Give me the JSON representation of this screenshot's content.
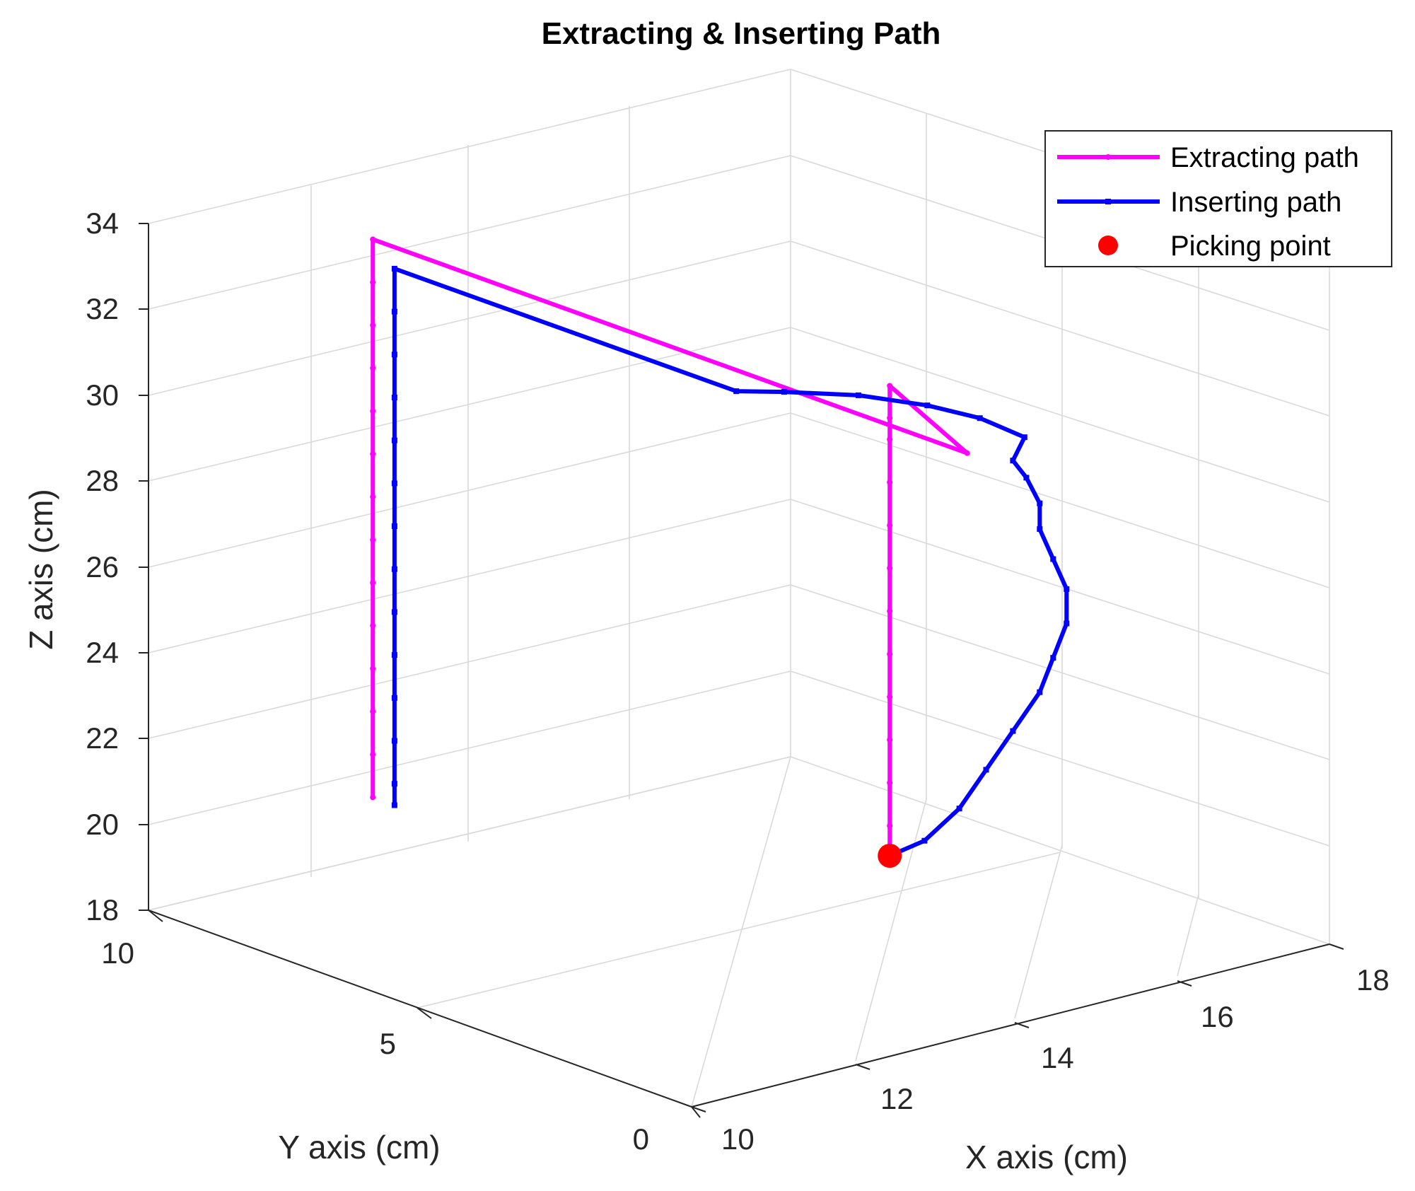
{
  "chart_data": {
    "type": "line3d",
    "title": "Extracting & Inserting Path",
    "xlabel": "X axis (cm)",
    "ylabel": "Y axis (cm)",
    "zlabel": "Z axis (cm)",
    "xlim": [
      10,
      18
    ],
    "ylim": [
      0,
      10
    ],
    "zlim": [
      18,
      34
    ],
    "xticks": [
      "10",
      "12",
      "14",
      "16",
      "18"
    ],
    "yticks": [
      "0",
      "5",
      "10"
    ],
    "zticks": [
      "18",
      "20",
      "22",
      "24",
      "26",
      "28",
      "30",
      "32",
      "34"
    ],
    "grid": true,
    "legend_position": "top-right",
    "series": [
      {
        "name": "Extracting path",
        "color": "#ff00ff",
        "marker": "dot",
        "points": [
          [
            16.3,
            5.6,
            18.3
          ],
          [
            16.3,
            5.6,
            19.0
          ],
          [
            16.3,
            5.6,
            20.0
          ],
          [
            16.3,
            5.6,
            21.0
          ],
          [
            16.3,
            5.6,
            22.0
          ],
          [
            16.3,
            5.6,
            23.0
          ],
          [
            16.3,
            5.6,
            24.0
          ],
          [
            16.3,
            5.6,
            25.0
          ],
          [
            16.3,
            5.6,
            26.0
          ],
          [
            16.3,
            5.6,
            27.0
          ],
          [
            16.3,
            5.6,
            28.0
          ],
          [
            16.3,
            5.6,
            28.5
          ],
          [
            16.3,
            5.6,
            29.25
          ],
          [
            15.5,
            3.0,
            29.25
          ],
          [
            12.2,
            9.1,
            33.0
          ],
          [
            12.2,
            9.1,
            32.0
          ],
          [
            12.2,
            9.1,
            31.0
          ],
          [
            12.2,
            9.1,
            30.0
          ],
          [
            12.2,
            9.1,
            29.0
          ],
          [
            12.2,
            9.1,
            28.0
          ],
          [
            12.2,
            9.1,
            27.0
          ],
          [
            12.2,
            9.1,
            26.0
          ],
          [
            12.2,
            9.1,
            25.0
          ],
          [
            12.2,
            9.1,
            24.0
          ],
          [
            12.2,
            9.1,
            23.0
          ],
          [
            12.2,
            9.1,
            22.0
          ],
          [
            12.2,
            9.1,
            21.0
          ],
          [
            12.2,
            9.1,
            20.0
          ]
        ]
      },
      {
        "name": "Inserting path",
        "color": "#0000ff",
        "marker": "square",
        "points": [
          [
            16.3,
            5.6,
            18.3
          ],
          [
            16.6,
            5.4,
            18.6
          ],
          [
            16.9,
            5.2,
            19.3
          ],
          [
            17.1,
            5.0,
            20.2
          ],
          [
            17.3,
            4.8,
            21.1
          ],
          [
            17.5,
            4.6,
            22.0
          ],
          [
            17.6,
            4.5,
            22.8
          ],
          [
            17.7,
            4.4,
            23.6
          ],
          [
            17.7,
            4.4,
            24.4
          ],
          [
            17.6,
            4.5,
            25.1
          ],
          [
            17.5,
            4.6,
            25.8
          ],
          [
            17.5,
            4.6,
            26.4
          ],
          [
            17.4,
            4.7,
            27.0
          ],
          [
            17.3,
            4.8,
            27.4
          ],
          [
            16.9,
            4.0,
            28.5
          ],
          [
            16.0,
            3.5,
            29.6
          ],
          [
            15.0,
            3.0,
            30.6
          ],
          [
            14.0,
            2.8,
            31.4
          ],
          [
            13.0,
            2.7,
            32.0
          ],
          [
            12.4,
            2.7,
            32.3
          ],
          [
            12.2,
            8.7,
            32.5
          ],
          [
            12.2,
            8.7,
            31.5
          ],
          [
            12.2,
            8.7,
            30.5
          ],
          [
            12.2,
            8.7,
            29.5
          ],
          [
            12.2,
            8.7,
            28.5
          ],
          [
            12.2,
            8.7,
            27.5
          ],
          [
            12.2,
            8.7,
            26.5
          ],
          [
            12.2,
            8.7,
            25.5
          ],
          [
            12.2,
            8.7,
            24.5
          ],
          [
            12.2,
            8.7,
            23.5
          ],
          [
            12.2,
            8.7,
            22.5
          ],
          [
            12.2,
            8.7,
            21.5
          ],
          [
            12.2,
            8.7,
            20.5
          ],
          [
            12.2,
            8.7,
            20.0
          ]
        ]
      }
    ],
    "picking_point": {
      "name": "Picking point",
      "color": "#ff0000",
      "point": [
        16.3,
        5.6,
        18.3
      ]
    }
  }
}
